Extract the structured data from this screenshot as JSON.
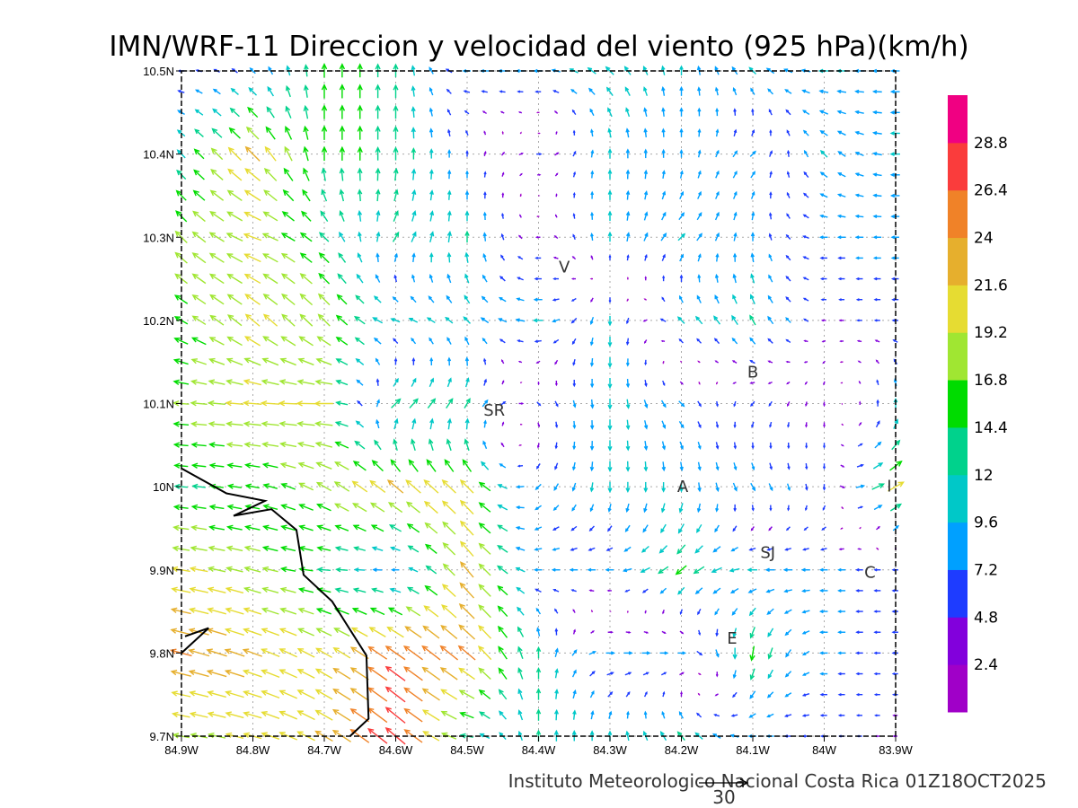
{
  "chart_data": {
    "type": "vector-field",
    "title": "IMN/WRF-11 Direccion y velocidad del viento (925 hPa)(km/h)",
    "footer": "Instituto Meteorologico Nacional Costa Rica  01Z18OCT2025",
    "reference_vector": {
      "label": "30",
      "speed": 30
    },
    "xlim": [
      -84.9,
      -83.9
    ],
    "ylim": [
      9.7,
      10.5
    ],
    "grid": true,
    "x_ticks": [
      {
        "v": -84.9,
        "label": "84.9W"
      },
      {
        "v": -84.8,
        "label": "84.8W"
      },
      {
        "v": -84.7,
        "label": "84.7W"
      },
      {
        "v": -84.6,
        "label": "84.6W"
      },
      {
        "v": -84.5,
        "label": "84.5W"
      },
      {
        "v": -84.4,
        "label": "84.4W"
      },
      {
        "v": -84.3,
        "label": "84.3W"
      },
      {
        "v": -84.2,
        "label": "84.2W"
      },
      {
        "v": -84.1,
        "label": "84.1W"
      },
      {
        "v": -84.0,
        "label": "84W"
      },
      {
        "v": -83.9,
        "label": "83.9W"
      }
    ],
    "y_ticks": [
      {
        "v": 9.7,
        "label": "9.7N"
      },
      {
        "v": 9.8,
        "label": "9.8N"
      },
      {
        "v": 9.9,
        "label": "9.9N"
      },
      {
        "v": 10.0,
        "label": "10N"
      },
      {
        "v": 10.1,
        "label": "10.1N"
      },
      {
        "v": 10.2,
        "label": "10.2N"
      },
      {
        "v": 10.3,
        "label": "10.3N"
      },
      {
        "v": 10.4,
        "label": "10.4N"
      },
      {
        "v": 10.5,
        "label": "10.5N"
      }
    ],
    "colorbar": {
      "levels": [
        "2.4",
        "4.8",
        "7.2",
        "9.6",
        "12",
        "14.4",
        "16.8",
        "19.2",
        "21.6",
        "24",
        "26.4",
        "28.8"
      ],
      "colors": [
        "#a000c8",
        "#8200dc",
        "#1e3cff",
        "#00a0ff",
        "#00c8c8",
        "#00d28c",
        "#00dc00",
        "#a0e632",
        "#e6dc32",
        "#e6af2d",
        "#f08228",
        "#fa3c3c",
        "#f00082"
      ]
    },
    "grid_lons": [
      -84.9,
      -84.8,
      -84.7,
      -84.6,
      -84.5,
      -84.4,
      -84.3,
      -84.2,
      -84.1,
      -84.0,
      -83.9
    ],
    "grid_lats": [
      10.5,
      10.4,
      10.3,
      10.2,
      10.1,
      10.0,
      9.9,
      9.8,
      9.7
    ],
    "vectors_dir_speed": [
      [
        [
          270,
          6
        ],
        [
          315,
          8
        ],
        [
          0,
          15
        ],
        [
          0,
          14
        ],
        [
          270,
          8
        ],
        [
          270,
          9
        ],
        [
          315,
          12
        ],
        [
          0,
          10
        ],
        [
          315,
          10
        ],
        [
          270,
          10
        ],
        [
          270,
          9
        ]
      ],
      [
        [
          315,
          12
        ],
        [
          315,
          22
        ],
        [
          0,
          15
        ],
        [
          0,
          14
        ],
        [
          0,
          6
        ],
        [
          90,
          5
        ],
        [
          0,
          10
        ],
        [
          0,
          8
        ],
        [
          45,
          8
        ],
        [
          315,
          10
        ],
        [
          270,
          10
        ]
      ],
      [
        [
          315,
          18
        ],
        [
          290,
          20
        ],
        [
          315,
          14
        ],
        [
          30,
          12
        ],
        [
          0,
          12
        ],
        [
          270,
          4
        ],
        [
          0,
          10
        ],
        [
          45,
          10
        ],
        [
          0,
          9
        ],
        [
          270,
          8
        ],
        [
          270,
          8
        ]
      ],
      [
        [
          300,
          16
        ],
        [
          310,
          20
        ],
        [
          315,
          18
        ],
        [
          290,
          10
        ],
        [
          315,
          10
        ],
        [
          270,
          10
        ],
        [
          180,
          10
        ],
        [
          315,
          10
        ],
        [
          330,
          12
        ],
        [
          270,
          4
        ],
        [
          270,
          6
        ]
      ],
      [
        [
          275,
          17
        ],
        [
          275,
          20
        ],
        [
          270,
          20
        ],
        [
          45,
          14
        ],
        [
          30,
          12
        ],
        [
          135,
          5
        ],
        [
          180,
          11
        ],
        [
          135,
          8
        ],
        [
          220,
          6
        ],
        [
          180,
          4
        ],
        [
          0,
          10
        ]
      ],
      [
        [
          275,
          14
        ],
        [
          280,
          15
        ],
        [
          300,
          18
        ],
        [
          310,
          22
        ],
        [
          315,
          20
        ],
        [
          225,
          8
        ],
        [
          180,
          11
        ],
        [
          180,
          10
        ],
        [
          150,
          9
        ],
        [
          180,
          6
        ],
        [
          60,
          20
        ]
      ],
      [
        [
          280,
          20
        ],
        [
          285,
          18
        ],
        [
          275,
          14
        ],
        [
          270,
          8
        ],
        [
          320,
          22
        ],
        [
          270,
          8
        ],
        [
          270,
          8
        ],
        [
          230,
          15
        ],
        [
          270,
          10
        ],
        [
          270,
          8
        ],
        [
          270,
          6
        ]
      ],
      [
        [
          285,
          24
        ],
        [
          290,
          22
        ],
        [
          300,
          20
        ],
        [
          305,
          26
        ],
        [
          310,
          24
        ],
        [
          0,
          12
        ],
        [
          90,
          9
        ],
        [
          90,
          8
        ],
        [
          190,
          16
        ],
        [
          270,
          8
        ],
        [
          270,
          6
        ]
      ],
      [
        [
          280,
          18
        ],
        [
          285,
          20
        ],
        [
          300,
          22
        ],
        [
          310,
          28
        ],
        [
          280,
          14
        ],
        [
          0,
          12
        ],
        [
          0,
          10
        ],
        [
          320,
          12
        ],
        [
          270,
          8
        ],
        [
          270,
          6
        ],
        [
          270,
          4
        ]
      ]
    ],
    "coastline": [
      [
        [
          -84.9,
          10.022
        ],
        [
          -84.837,
          9.992
        ],
        [
          -84.783,
          9.983
        ],
        [
          -84.827,
          9.965
        ],
        [
          -84.774,
          9.973
        ],
        [
          -84.739,
          9.948
        ],
        [
          -84.729,
          9.894
        ],
        [
          -84.689,
          9.862
        ],
        [
          -84.641,
          9.797
        ],
        [
          -84.638,
          9.721
        ],
        [
          -84.664,
          9.7
        ]
      ],
      [
        [
          -84.9,
          9.8
        ],
        [
          -84.862,
          9.83
        ],
        [
          -84.895,
          9.82
        ]
      ]
    ],
    "places": [
      {
        "label": "V",
        "lon": -84.364,
        "lat": 10.265
      },
      {
        "label": "SR",
        "lon": -84.462,
        "lat": 10.093
      },
      {
        "label": "B",
        "lon": -84.1,
        "lat": 10.139
      },
      {
        "label": "A",
        "lon": -84.198,
        "lat": 10.001
      },
      {
        "label": "I",
        "lon": -83.909,
        "lat": 10.002
      },
      {
        "label": "SJ",
        "lon": -84.079,
        "lat": 9.922
      },
      {
        "label": "C",
        "lon": -83.936,
        "lat": 9.898
      },
      {
        "label": "E",
        "lon": -84.129,
        "lat": 9.819
      }
    ]
  }
}
